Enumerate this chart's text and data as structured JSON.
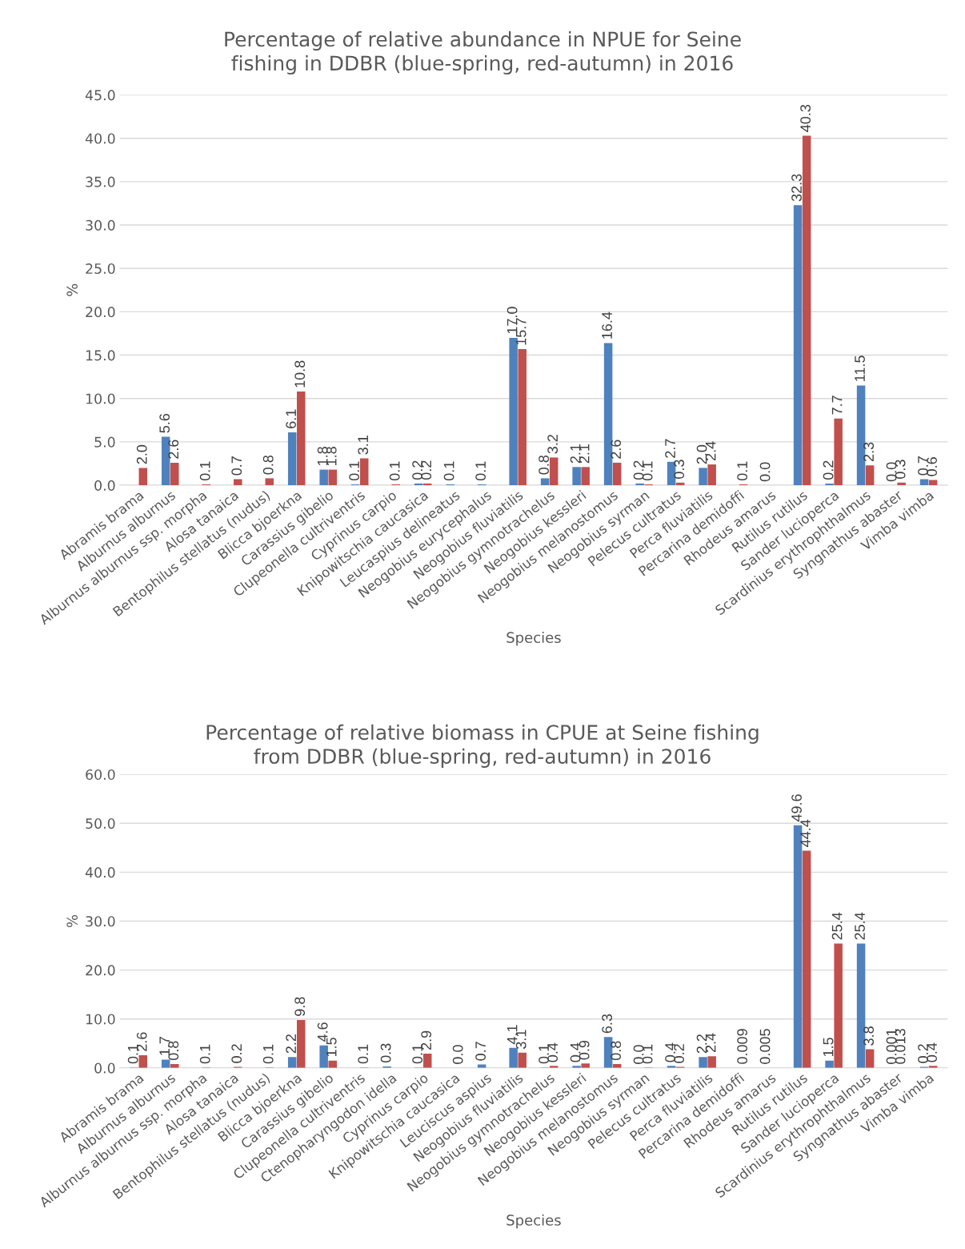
{
  "chart_data": [
    {
      "type": "bar",
      "title": "Percentage of relative abundance in NPUE for Seine\nfishing in DDBR (blue-spring, red-autumn) in 2016",
      "xlabel": "Species",
      "ylabel": "%",
      "categories": [
        "Abramis brama",
        "Alburnus alburnus",
        "Alburnus alburnus ssp. morpha",
        "Alosa tanaica",
        "Bentophilus stellatus (nudus)",
        "Blicca bjoerkna",
        "Carassius gibelio",
        "Clupeonella cultriventris",
        "Cyprinus carpio",
        "Knipowitschia caucasica",
        "Leucaspius delineatus",
        "Neogobius eurycephalus",
        "Neogobius fluviatilis",
        "Neogobius gymnotrachelus",
        "Neogobius kessleri",
        "Neogobius melanostomus",
        "Neogobius syrman",
        "Pelecus cultratus",
        "Perca fluviatilis",
        "Percarina demidoffi",
        "Rhodeus amarus",
        "Rutilus rutilus",
        "Sander lucioperca",
        "Scardinius erythrophthalmus",
        "Syngnathus abaster",
        "Vimba vimba"
      ],
      "series": [
        {
          "color": "#4f81bd",
          "values": [
            null,
            5.6,
            null,
            null,
            null,
            6.1,
            1.8,
            0.1,
            null,
            0.2,
            0.1,
            0.1,
            17.0,
            0.8,
            2.1,
            16.4,
            0.2,
            2.7,
            2.0,
            null,
            0.0,
            32.3,
            0.2,
            11.5,
            0.0,
            0.7
          ],
          "value_labels": [
            null,
            "5.6",
            null,
            null,
            null,
            "6.1",
            "1.8",
            "0.1",
            null,
            "0.2",
            "0.1",
            "0.1",
            "17.0",
            "0.8",
            "2.1",
            "16.4",
            "0.2",
            "2.7",
            "2.0",
            null,
            "0.0",
            "32.3",
            "0.2",
            "11.5",
            "0.0",
            "0.7"
          ]
        },
        {
          "color": "#c0504d",
          "values": [
            2.0,
            2.6,
            0.1,
            0.7,
            0.8,
            10.8,
            1.8,
            3.1,
            0.1,
            0.2,
            null,
            null,
            15.7,
            3.2,
            2.1,
            2.6,
            0.1,
            0.3,
            2.4,
            0.1,
            null,
            40.3,
            7.7,
            2.3,
            0.3,
            0.6
          ],
          "value_labels": [
            "2.0",
            "2.6",
            "0.1",
            "0.7",
            "0.8",
            "10.8",
            "1.8",
            "3.1",
            "0.1",
            "0.2",
            null,
            null,
            "15.7",
            "3.2",
            "2.1",
            "2.6",
            "0.1",
            "0.3",
            "2.4",
            "0.1",
            null,
            "40.3",
            "7.7",
            "2.3",
            "0.3",
            "0.6"
          ]
        }
      ],
      "ylim": [
        0,
        45
      ],
      "yticks": [
        {
          "value": 0,
          "label": "0.0"
        },
        {
          "value": 5,
          "label": "5.0"
        },
        {
          "value": 10,
          "label": "10.0"
        },
        {
          "value": 15,
          "label": "15.0"
        },
        {
          "value": 20,
          "label": "20.0"
        },
        {
          "value": 25,
          "label": "25.0"
        },
        {
          "value": 30,
          "label": "30.0"
        },
        {
          "value": 35,
          "label": "35.0"
        },
        {
          "value": 40,
          "label": "40.0"
        },
        {
          "value": 45,
          "label": "45.0"
        }
      ],
      "grid": "y"
    },
    {
      "type": "bar",
      "title": "Percentage of relative biomass in CPUE at Seine fishing\nfrom DDBR (blue-spring, red-autumn) in 2016",
      "xlabel": "Species",
      "ylabel": "%",
      "categories": [
        "Abramis brama",
        "Alburnus alburnus",
        "Alburnus alburnus ssp. morpha",
        "Alosa tanaica",
        "Bentophilus stellatus (nudus)",
        "Blicca bjoerkna",
        "Carassius gibelio",
        "Clupeonella cultriventris",
        "Ctenopharyngodon idella",
        "Cyprinus carpio",
        "Knipowitschia caucasica",
        "Leuciscus aspius",
        "Neogobius fluviatilis",
        "Neogobius gymnotrachelus",
        "Neogobius kessleri",
        "Neogobius melanostomus",
        "Neogobius syrman",
        "Pelecus cultratus",
        "Perca fluviatilis",
        "Percarina demidoffi",
        "Rhodeus amarus",
        "Rutilus rutilus",
        "Sander lucioperca",
        "Scardinius erythrophthalmus",
        "Syngnathus abaster",
        "Vimba vimba"
      ],
      "series": [
        {
          "color": "#4f81bd",
          "values": [
            0.1,
            1.7,
            null,
            null,
            null,
            2.2,
            4.6,
            null,
            0.3,
            0.1,
            null,
            0.7,
            4.1,
            0.1,
            0.4,
            6.3,
            0.0,
            0.4,
            2.2,
            null,
            0.005,
            49.6,
            1.5,
            25.4,
            0.001,
            0.2
          ],
          "value_labels": [
            "0.1",
            "1.7",
            null,
            null,
            null,
            "2.2",
            "4.6",
            null,
            "0.3",
            "0.1",
            null,
            "0.7",
            "4.1",
            "0.1",
            "0.4",
            "6.3",
            "0.0",
            "0.4",
            "2.2",
            null,
            "0.005",
            "49.6",
            "1.5",
            "25.4",
            "0.001",
            "0.2"
          ]
        },
        {
          "color": "#c0504d",
          "values": [
            2.6,
            0.8,
            0.1,
            0.2,
            0.1,
            9.8,
            1.5,
            0.1,
            null,
            2.9,
            0.0,
            null,
            3.1,
            0.4,
            0.9,
            0.8,
            0.1,
            0.2,
            2.4,
            0.009,
            null,
            44.4,
            25.4,
            3.8,
            0.013,
            0.4
          ],
          "value_labels": [
            "2.6",
            "0.8",
            "0.1",
            "0.2",
            "0.1",
            "9.8",
            "1.5",
            "0.1",
            null,
            "2.9",
            "0.0",
            null,
            "3.1",
            "0.4",
            "0.9",
            "0.8",
            "0.1",
            "0.2",
            "2.4",
            "0.009",
            null,
            "44.4",
            "25.4",
            "3.8",
            "0.013",
            "0.4"
          ]
        }
      ],
      "ylim": [
        0,
        60
      ],
      "yticks": [
        {
          "value": 0,
          "label": "0.0"
        },
        {
          "value": 10,
          "label": "10.0"
        },
        {
          "value": 20,
          "label": "20.0"
        },
        {
          "value": 30,
          "label": "30.0"
        },
        {
          "value": 40,
          "label": "40.0"
        },
        {
          "value": 50,
          "label": "50.0"
        },
        {
          "value": 60,
          "label": "60.0"
        }
      ],
      "grid": "y"
    }
  ]
}
